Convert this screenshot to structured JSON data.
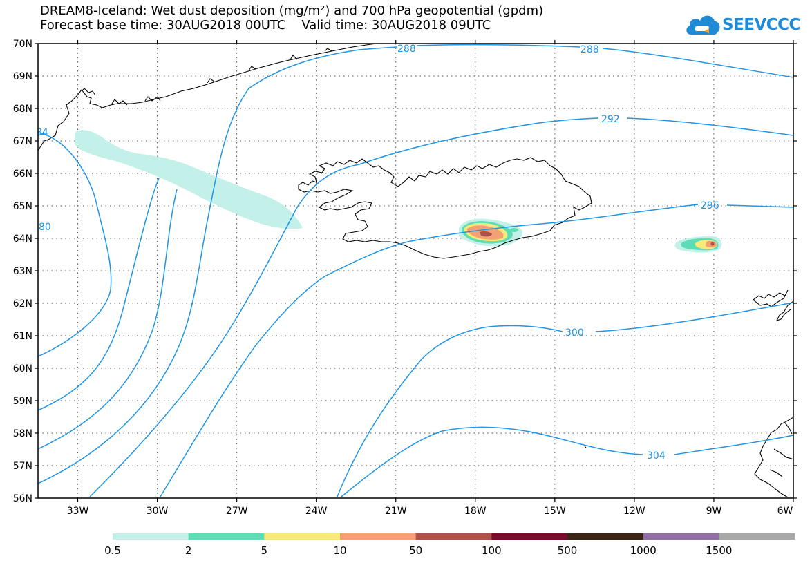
{
  "title_line1": "DREAM8-Iceland: Wet dust deposition (mg/m²) and 700 hPa geopotential (gpdm)",
  "title_line2": "Forecast base time: 30AUG2018 00UTC    Valid time: 30AUG2018 09UTC",
  "logo_text": "SEEVCCC",
  "colors": {
    "contour": "#1e95e6",
    "coast": "#000000",
    "grid": "#555555"
  },
  "map": {
    "lon_range": [
      -34.5,
      -6
    ],
    "lat_range": [
      56,
      70
    ],
    "lon_ticks": [
      {
        "value": -33,
        "label": "33W"
      },
      {
        "value": -30,
        "label": "30W"
      },
      {
        "value": -27,
        "label": "27W"
      },
      {
        "value": -24,
        "label": "24W"
      },
      {
        "value": -21,
        "label": "21W"
      },
      {
        "value": -18,
        "label": "18W"
      },
      {
        "value": -15,
        "label": "15W"
      },
      {
        "value": -12,
        "label": "12W"
      },
      {
        "value": -9,
        "label": "9W"
      },
      {
        "value": -6,
        "label": "6W"
      }
    ],
    "lat_ticks": [
      {
        "value": 70,
        "label": "70N"
      },
      {
        "value": 69,
        "label": "69N"
      },
      {
        "value": 68,
        "label": "68N"
      },
      {
        "value": 67,
        "label": "67N"
      },
      {
        "value": 66,
        "label": "66N"
      },
      {
        "value": 65,
        "label": "65N"
      },
      {
        "value": 64,
        "label": "64N"
      },
      {
        "value": 63,
        "label": "63N"
      },
      {
        "value": 62,
        "label": "62N"
      },
      {
        "value": 61,
        "label": "61N"
      },
      {
        "value": 60,
        "label": "60N"
      },
      {
        "value": 59,
        "label": "59N"
      },
      {
        "value": 58,
        "label": "58N"
      },
      {
        "value": 57,
        "label": "57N"
      },
      {
        "value": 56,
        "label": "56N"
      }
    ],
    "contour_labels": [
      "288",
      "288",
      "292",
      "296",
      "300",
      "304",
      "80",
      "84"
    ]
  },
  "legend": {
    "bins": [
      {
        "color": "#c4f0ea",
        "label": "0.5"
      },
      {
        "color": "#5ddcb5",
        "label": "2"
      },
      {
        "color": "#f7e97a",
        "label": "5"
      },
      {
        "color": "#f2a074",
        "label": "10"
      },
      {
        "color": "#ac5447",
        "label": "50"
      },
      {
        "color": "#780a2a",
        "label": "100"
      },
      {
        "color": "#3b2414",
        "label": "500"
      },
      {
        "color": "#906fa5",
        "label": "1000"
      },
      {
        "color": "#a8a8a8",
        "label": "1500"
      }
    ]
  }
}
